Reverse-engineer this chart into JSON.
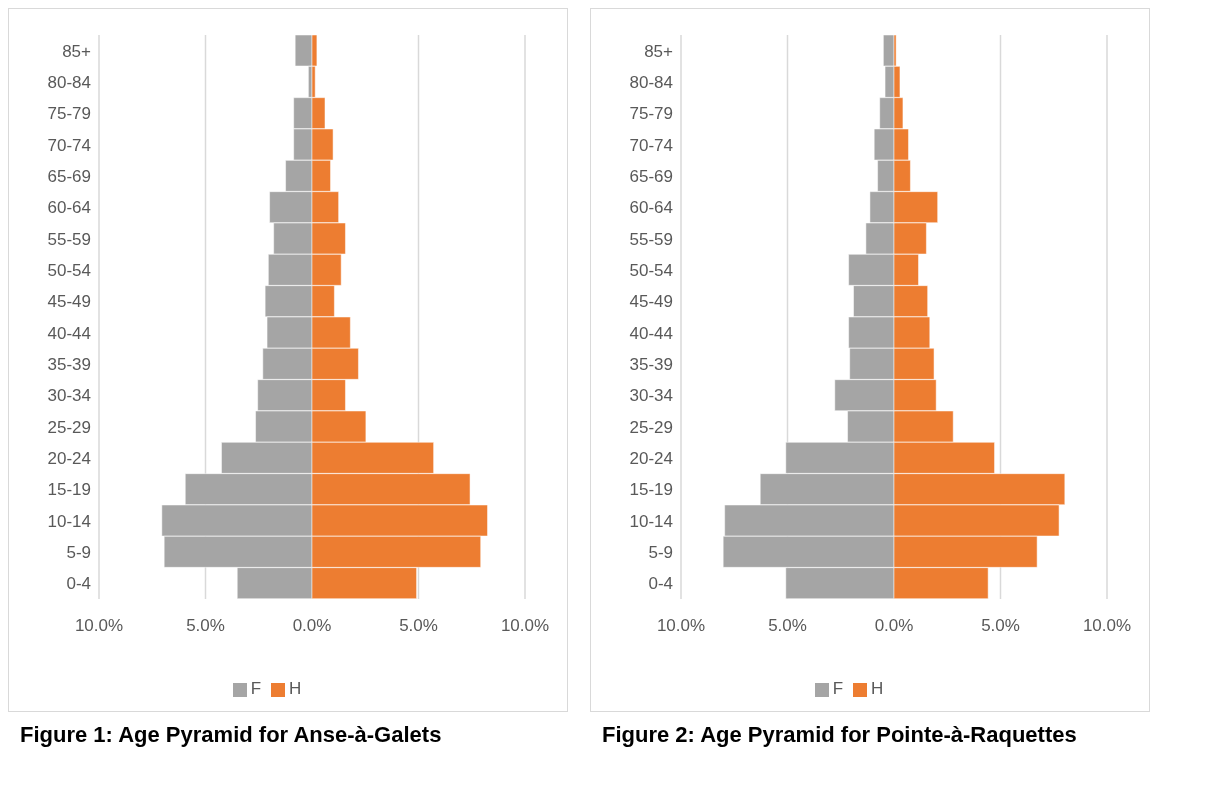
{
  "chart_data": [
    {
      "type": "bar",
      "orientation": "horizontal",
      "stacked": true,
      "title": "Figure 1: Age Pyramid for Anse-à-Galets",
      "categories": [
        "85+",
        "80-84",
        "75-79",
        "70-74",
        "65-69",
        "60-64",
        "55-59",
        "50-54",
        "45-49",
        "40-44",
        "35-39",
        "30-34",
        "25-29",
        "20-24",
        "15-19",
        "10-14",
        "5-9",
        "0-4"
      ],
      "series": [
        {
          "name": "F",
          "color": "#a5a5a5",
          "values": [
            -0.79,
            -0.17,
            -0.86,
            -0.86,
            -1.24,
            -1.99,
            -1.8,
            -2.05,
            -2.2,
            -2.11,
            -2.31,
            -2.55,
            -2.65,
            -4.25,
            -5.95,
            -7.05,
            -6.94,
            -3.51
          ]
        },
        {
          "name": "H",
          "color": "#ed7d31",
          "values": [
            0.23,
            0.15,
            0.61,
            0.99,
            0.87,
            1.25,
            1.57,
            1.37,
            1.05,
            1.8,
            2.18,
            1.57,
            2.53,
            5.71,
            7.42,
            8.24,
            7.92,
            4.91
          ]
        }
      ],
      "xlim": [
        -10,
        10
      ],
      "xticks": [
        {
          "value": -10,
          "label": "10.0%"
        },
        {
          "value": -5,
          "label": "5.0%"
        },
        {
          "value": 0,
          "label": "0.0%"
        },
        {
          "value": 5,
          "label": "5.0%"
        },
        {
          "value": 10,
          "label": "10.0%"
        }
      ],
      "grid": "x",
      "legend": "bottom"
    },
    {
      "type": "bar",
      "orientation": "horizontal",
      "stacked": true,
      "title": "Figure 2: Age Pyramid for Pointe-à-Raquettes",
      "categories": [
        "85+",
        "80-84",
        "75-79",
        "70-74",
        "65-69",
        "60-64",
        "55-59",
        "50-54",
        "45-49",
        "40-44",
        "35-39",
        "30-34",
        "25-29",
        "20-24",
        "15-19",
        "10-14",
        "5-9",
        "0-4"
      ],
      "series": [
        {
          "name": "F",
          "color": "#a5a5a5",
          "values": [
            -0.5,
            -0.42,
            -0.67,
            -0.93,
            -0.77,
            -1.13,
            -1.32,
            -2.13,
            -1.9,
            -2.13,
            -2.08,
            -2.78,
            -2.18,
            -5.08,
            -6.28,
            -7.95,
            -8.02,
            -5.08
          ]
        },
        {
          "name": "H",
          "color": "#ed7d31",
          "values": [
            0.1,
            0.28,
            0.42,
            0.68,
            0.77,
            2.05,
            1.52,
            1.15,
            1.58,
            1.68,
            1.88,
            1.98,
            2.78,
            4.72,
            8.02,
            7.75,
            6.72,
            4.42
          ]
        }
      ],
      "xlim": [
        -10,
        10
      ],
      "xticks": [
        {
          "value": -10,
          "label": "10.0%"
        },
        {
          "value": -5,
          "label": "5.0%"
        },
        {
          "value": 0,
          "label": "0.0%"
        },
        {
          "value": 5,
          "label": "5.0%"
        },
        {
          "value": 10,
          "label": "10.0%"
        }
      ],
      "grid": "x",
      "legend": "bottom"
    }
  ]
}
